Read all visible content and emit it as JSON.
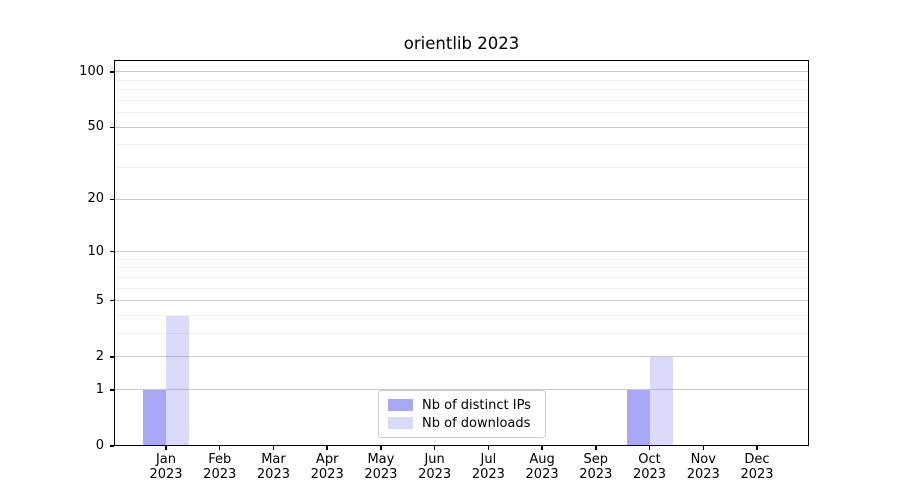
{
  "chart_data": {
    "type": "bar",
    "title": "orientlib 2023",
    "scale": "log10(1+y)",
    "ylim": [
      0,
      116
    ],
    "grid": true,
    "legend_position": "lower center",
    "categories": [
      {
        "month": "Jan",
        "year": "2023"
      },
      {
        "month": "Feb",
        "year": "2023"
      },
      {
        "month": "Mar",
        "year": "2023"
      },
      {
        "month": "Apr",
        "year": "2023"
      },
      {
        "month": "May",
        "year": "2023"
      },
      {
        "month": "Jun",
        "year": "2023"
      },
      {
        "month": "Jul",
        "year": "2023"
      },
      {
        "month": "Aug",
        "year": "2023"
      },
      {
        "month": "Sep",
        "year": "2023"
      },
      {
        "month": "Oct",
        "year": "2023"
      },
      {
        "month": "Nov",
        "year": "2023"
      },
      {
        "month": "Dec",
        "year": "2023"
      }
    ],
    "series": [
      {
        "name": "Nb of distinct IPs",
        "color": "rgba(102,102,238,0.57)",
        "values": [
          1,
          0,
          0,
          0,
          0,
          0,
          0,
          0,
          0,
          1,
          0,
          0
        ]
      },
      {
        "name": "Nb of downloads",
        "color": "rgba(102,102,238,0.24)",
        "values": [
          4,
          0,
          0,
          0,
          0,
          0,
          0,
          0,
          0,
          2,
          0,
          0
        ]
      }
    ],
    "yticks": [
      {
        "value": 0,
        "label": "0"
      },
      {
        "value": 1,
        "label": "1"
      },
      {
        "value": 2,
        "label": "2"
      },
      {
        "value": 5,
        "label": "5"
      },
      {
        "value": 10,
        "label": "10"
      },
      {
        "value": 20,
        "label": "20"
      },
      {
        "value": 50,
        "label": "50"
      },
      {
        "value": 100,
        "label": "100"
      }
    ],
    "minor_yticks": [
      3,
      4,
      6,
      7,
      8,
      9,
      30,
      40,
      60,
      70,
      80,
      90
    ]
  },
  "colors": {
    "bar_base": "#6666ee",
    "grid_major": "#cbcbcb",
    "grid_minor": "#f0f0f0",
    "axis": "#000000",
    "legend_border": "#cccccc",
    "background": "#ffffff"
  }
}
